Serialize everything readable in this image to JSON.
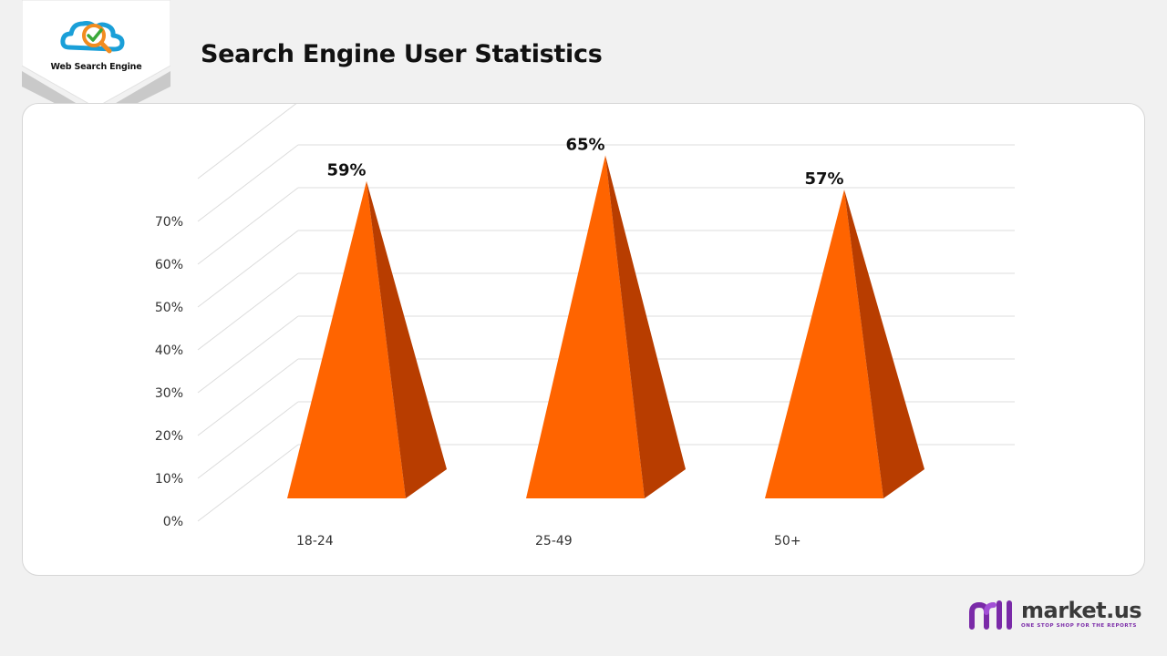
{
  "header": {
    "logo_text": "Web Search Engine",
    "title": "Search Engine User Statistics"
  },
  "colors": {
    "pyramid_front": "#ff6400",
    "pyramid_side": "#b83d00",
    "logo_cloud": "#1a9fd8",
    "logo_glass": "#f28c1f",
    "logo_check": "#3aa83a",
    "brand_purple": "#7a2aa8"
  },
  "chart_data": {
    "type": "bar",
    "style": "3d-pyramid",
    "categories": [
      "18-24",
      "25-49",
      "50+"
    ],
    "values": [
      59,
      65,
      57
    ],
    "data_labels": [
      "59%",
      "65%",
      "57%"
    ],
    "y_ticks": [
      "0%",
      "10%",
      "20%",
      "30%",
      "40%",
      "50%",
      "60%",
      "70%"
    ],
    "ylim": [
      0,
      80
    ],
    "grid": true,
    "title": "",
    "xlabel": "",
    "ylabel": ""
  },
  "footer": {
    "brand_name": "market.us",
    "brand_tagline": "ONE STOP SHOP FOR THE REPORTS",
    "brand_icon": "market-us-logo-icon"
  }
}
